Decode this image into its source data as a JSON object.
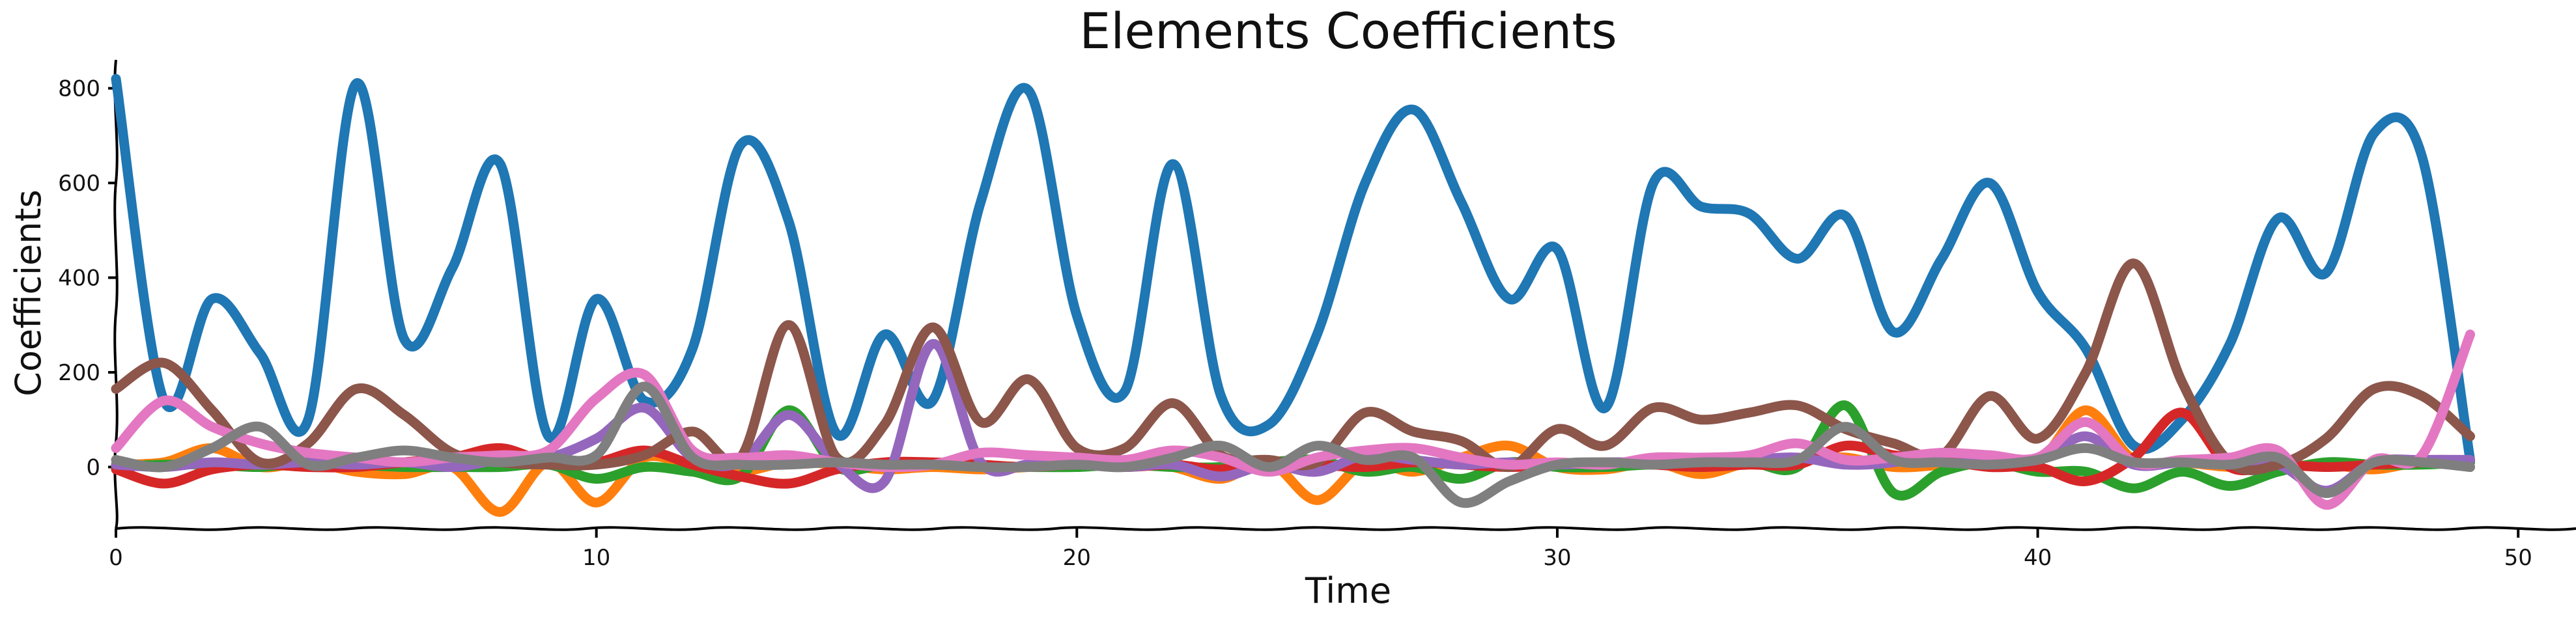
{
  "chart_data": {
    "type": "line",
    "title": "Elements Coefficients",
    "xlabel": "Time",
    "ylabel": "Coefficients",
    "xlim": [
      0,
      51
    ],
    "ylim": [
      -130,
      860
    ],
    "xticks": [
      0,
      10,
      20,
      30,
      40,
      50
    ],
    "yticks": [
      0,
      200,
      400,
      600,
      800
    ],
    "grid": false,
    "legend": "none",
    "x": [
      0,
      1,
      2,
      3,
      4,
      5,
      6,
      7,
      8,
      9,
      10,
      11,
      12,
      13,
      14,
      15,
      16,
      17,
      18,
      19,
      20,
      21,
      22,
      23,
      24,
      25,
      26,
      27,
      28,
      29,
      30,
      31,
      32,
      33,
      34,
      35,
      36,
      37,
      38,
      39,
      40,
      41,
      42,
      43,
      44,
      45,
      46,
      47,
      48,
      49
    ],
    "series": [
      {
        "color": "#1f77b4",
        "values": [
          820,
          140,
          355,
          240,
          100,
          810,
          270,
          420,
          640,
          65,
          355,
          140,
          250,
          680,
          520,
          70,
          280,
          140,
          560,
          795,
          320,
          160,
          640,
          150,
          90,
          280,
          600,
          755,
          560,
          355,
          460,
          125,
          600,
          550,
          535,
          440,
          530,
          285,
          440,
          600,
          370,
          250,
          45,
          100,
          260,
          525,
          410,
          705,
          655,
          15
        ]
      },
      {
        "color": "#ff7f0e",
        "values": [
          5,
          10,
          40,
          0,
          10,
          -10,
          -15,
          0,
          -95,
          10,
          -75,
          20,
          0,
          -10,
          10,
          5,
          -5,
          0,
          -5,
          0,
          5,
          10,
          0,
          -25,
          10,
          -70,
          10,
          -10,
          20,
          45,
          0,
          -5,
          10,
          -15,
          10,
          15,
          20,
          0,
          5,
          20,
          10,
          120,
          15,
          10,
          0,
          0,
          5,
          -5,
          10,
          0
        ]
      },
      {
        "color": "#2ca02c",
        "values": [
          0,
          5,
          5,
          0,
          10,
          5,
          0,
          0,
          0,
          5,
          -25,
          0,
          -10,
          -20,
          120,
          0,
          5,
          5,
          0,
          0,
          0,
          5,
          0,
          0,
          10,
          15,
          -10,
          0,
          -25,
          10,
          0,
          0,
          5,
          0,
          10,
          0,
          130,
          -55,
          -10,
          10,
          -10,
          -10,
          -45,
          -10,
          -40,
          -10,
          10,
          5,
          5,
          10
        ]
      },
      {
        "color": "#d62728",
        "values": [
          -5,
          -35,
          -5,
          5,
          0,
          0,
          10,
          20,
          40,
          10,
          10,
          35,
          5,
          -20,
          -35,
          -5,
          10,
          10,
          5,
          0,
          5,
          0,
          5,
          -5,
          10,
          5,
          0,
          10,
          5,
          0,
          5,
          10,
          5,
          0,
          5,
          5,
          45,
          25,
          15,
          0,
          0,
          -30,
          20,
          115,
          0,
          5,
          0,
          5,
          10,
          15
        ]
      },
      {
        "color": "#9467bd",
        "values": [
          5,
          0,
          10,
          5,
          10,
          5,
          10,
          0,
          15,
          20,
          60,
          125,
          20,
          10,
          110,
          10,
          -30,
          260,
          10,
          5,
          5,
          0,
          5,
          -20,
          5,
          -10,
          25,
          15,
          5,
          10,
          5,
          10,
          10,
          10,
          15,
          20,
          5,
          10,
          30,
          20,
          15,
          65,
          5,
          10,
          5,
          5,
          -50,
          10,
          15,
          15
        ]
      },
      {
        "color": "#8c564b",
        "values": [
          165,
          220,
          120,
          10,
          50,
          165,
          110,
          30,
          10,
          5,
          5,
          25,
          75,
          20,
          300,
          20,
          90,
          295,
          95,
          185,
          40,
          40,
          135,
          25,
          15,
          10,
          115,
          75,
          55,
          0,
          80,
          45,
          125,
          100,
          115,
          130,
          80,
          50,
          25,
          150,
          60,
          200,
          430,
          180,
          10,
          5,
          60,
          165,
          150,
          65
        ]
      },
      {
        "color": "#e377c2",
        "values": [
          40,
          140,
          85,
          50,
          30,
          20,
          10,
          20,
          25,
          35,
          145,
          195,
          35,
          20,
          25,
          10,
          0,
          5,
          30,
          25,
          20,
          15,
          35,
          20,
          -10,
          20,
          35,
          40,
          20,
          5,
          10,
          5,
          20,
          20,
          25,
          50,
          15,
          20,
          30,
          25,
          20,
          95,
          10,
          15,
          20,
          35,
          -80,
          15,
          25,
          280
        ]
      },
      {
        "color": "#7f7f7f",
        "values": [
          15,
          0,
          40,
          85,
          5,
          20,
          35,
          20,
          10,
          20,
          25,
          170,
          20,
          5,
          5,
          10,
          5,
          5,
          0,
          0,
          5,
          0,
          20,
          45,
          0,
          45,
          15,
          20,
          -75,
          -30,
          5,
          10,
          5,
          10,
          10,
          15,
          85,
          15,
          10,
          5,
          15,
          40,
          10,
          10,
          5,
          20,
          -55,
          10,
          10,
          0
        ]
      }
    ]
  }
}
